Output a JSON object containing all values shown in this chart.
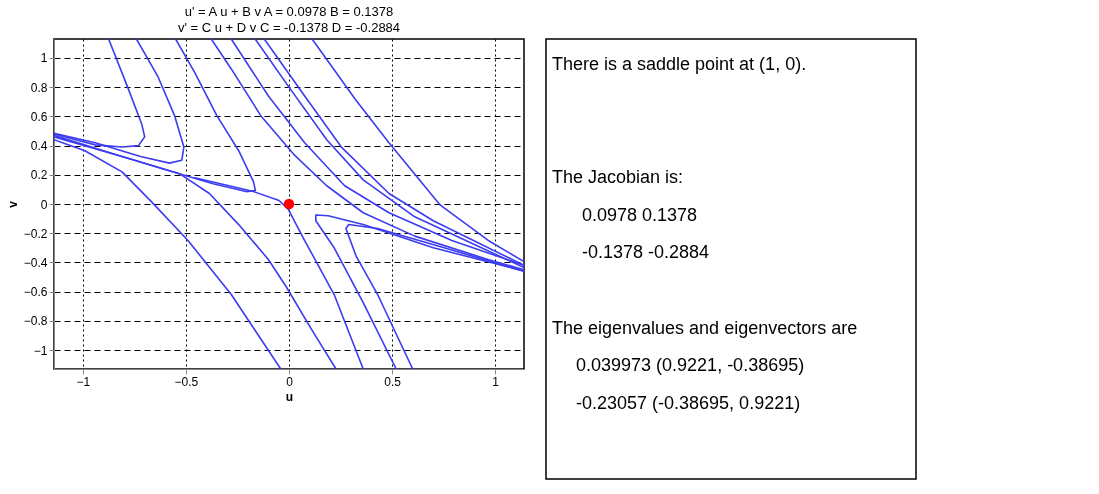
{
  "chart_data": [
    {
      "type": "line",
      "title": "u' = A u + B v A = 0.0978 B = 0.1378",
      "subtitle": "v' = C u + D v C = -0.1378 D = -0.2884",
      "xlabel": "u",
      "ylabel": "v",
      "xlim": [
        -1.14,
        1.14
      ],
      "ylim": [
        -1.13,
        1.13
      ],
      "xticks": [
        -1,
        -0.5,
        0,
        0.5,
        1
      ],
      "yticks": [
        -1,
        -0.8,
        -0.6,
        -0.4,
        -0.2,
        0,
        0.2,
        0.4,
        0.6,
        0.8,
        1
      ],
      "grid": true,
      "marker": "none",
      "line_style": "solid",
      "series": [
        {
          "color": "#3c3cf0",
          "x": [
            -0.875,
            -0.78,
            -0.715,
            -0.7,
            -0.73,
            -0.81,
            -0.94,
            -1.14
          ],
          "values": [
            1.13,
            0.79,
            0.55,
            0.46,
            0.4,
            0.39,
            0.405,
            0.48
          ]
        },
        {
          "color": "#3c3cf0",
          "x": [
            -0.74,
            -0.635,
            -0.555,
            -0.51,
            -0.52,
            -0.58,
            -0.72,
            -0.94,
            -1.14
          ],
          "values": [
            1.13,
            0.87,
            0.605,
            0.39,
            0.3,
            0.28,
            0.325,
            0.42,
            0.485
          ]
        },
        {
          "color": "#3c3cf0",
          "x": [
            -0.55,
            -0.457,
            -0.35,
            -0.244,
            -0.172,
            -0.163,
            -0.208,
            -0.368,
            -0.528,
            -0.777,
            -1.14
          ],
          "values": [
            1.13,
            0.9,
            0.605,
            0.365,
            0.152,
            0.093,
            0.085,
            0.139,
            0.205,
            0.312,
            0.46
          ]
        },
        {
          "color": "#3c3cf0",
          "x": [
            -1.14,
            -0.99,
            -0.81,
            -0.67,
            -0.49,
            -0.28,
            -0.04
          ],
          "values": [
            0.44,
            0.365,
            0.22,
            0.02,
            -0.25,
            -0.62,
            -1.13
          ]
        },
        {
          "color": "#3c3cf0",
          "x": [
            -1.14,
            -0.81,
            -0.528,
            -0.386,
            -0.244,
            -0.1,
            -0.012,
            0.11,
            0.228
          ],
          "values": [
            0.47,
            0.325,
            0.205,
            0.072,
            -0.141,
            -0.38,
            -0.57,
            -0.86,
            -1.13
          ]
        },
        {
          "color": "#3c3cf0",
          "x": [
            -0.457,
            -0.172,
            -0.048,
            -0.004,
            0.076,
            0.219,
            0.36
          ],
          "values": [
            0.18,
            0.085,
            0.024,
            -0.035,
            -0.25,
            -0.62,
            -1.13
          ]
        },
        {
          "color": "#3c3cf0",
          "x": [
            0.52,
            0.36,
            0.219,
            0.13,
            0.13,
            0.19,
            0.36,
            0.7,
            0.965,
            1.14
          ],
          "values": [
            -1.13,
            -0.675,
            -0.3,
            -0.115,
            -0.075,
            -0.08,
            -0.14,
            -0.3,
            -0.395,
            -0.46
          ]
        },
        {
          "color": "#3c3cf0",
          "x": [
            0.6,
            0.43,
            0.325,
            0.276,
            0.29,
            0.43,
            0.79,
            1.14
          ],
          "values": [
            -1.13,
            -0.62,
            -0.355,
            -0.168,
            -0.14,
            -0.168,
            -0.315,
            -0.46
          ]
        },
        {
          "color": "#3c3cf0",
          "x": [
            -0.377,
            -0.28,
            -0.137,
            0.023,
            0.183,
            0.36,
            0.61,
            0.965,
            1.14
          ],
          "values": [
            1.13,
            0.925,
            0.605,
            0.34,
            0.125,
            -0.06,
            -0.22,
            -0.38,
            -0.45
          ]
        },
        {
          "color": "#3c3cf0",
          "x": [
            -0.28,
            -0.1,
            0.076,
            0.27,
            0.485,
            0.79,
            1.14
          ],
          "values": [
            1.13,
            0.74,
            0.42,
            0.125,
            -0.06,
            -0.25,
            -0.42
          ]
        },
        {
          "color": "#3c3cf0",
          "x": [
            -0.164,
            0.005,
            0.183,
            0.36,
            0.61,
            1.14
          ],
          "values": [
            1.13,
            0.79,
            0.44,
            0.165,
            -0.088,
            -0.435
          ]
        },
        {
          "color": "#3c3cf0",
          "x": [
            -0.12,
            0.076,
            0.254,
            0.485,
            0.7,
            1.14
          ],
          "values": [
            1.13,
            0.74,
            0.39,
            0.072,
            -0.115,
            -0.42
          ]
        },
        {
          "color": "#3c3cf0",
          "x": [
            0.112,
            0.325,
            0.485,
            0.734,
            0.965,
            1.14
          ],
          "values": [
            1.13,
            0.71,
            0.42,
            -0.008,
            -0.248,
            -0.395
          ]
        },
        {
          "type": "scatter",
          "color": "#ff0000",
          "marker": "circle",
          "x": [
            0
          ],
          "values": [
            0
          ]
        }
      ]
    },
    {
      "type": "other",
      "annotations": [
        "There is a saddle point at (1, 0).",
        "The Jacobian is:",
        "0.0978 0.1378",
        "-0.1378 -0.2884",
        "The eigenvalues and eigenvectors are",
        "0.039973 (0.9221, -0.38695)",
        "-0.23057 (-0.38695, 0.9221)"
      ]
    }
  ]
}
